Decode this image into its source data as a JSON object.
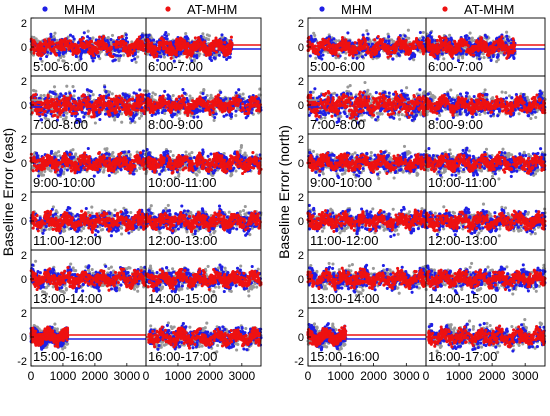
{
  "legend": {
    "series": [
      {
        "name": "MHM",
        "color": "#1f1fe6"
      },
      {
        "name": "AT-MHM",
        "color": "#ee1111"
      }
    ],
    "reference_color": "#999999"
  },
  "chart_data": [
    {
      "type": "scatter",
      "panel": "east",
      "ylabel": "Baseline Error (east)",
      "xlim": [
        0,
        3600
      ],
      "ylim": [
        -2,
        2
      ],
      "xticks": [
        0,
        1000,
        2000,
        3000
      ],
      "yticks": [
        -2,
        0,
        2
      ],
      "grid": false,
      "legend_position": "top",
      "series": [
        "MHM",
        "AT-MHM"
      ],
      "rows": [
        {
          "left": "5:00-6:00",
          "right": "6:00-7:00"
        },
        {
          "left": "7:00-8:00",
          "right": "8:00-9:00"
        },
        {
          "left": "9:00-10:00",
          "right": "10:00-11:00"
        },
        {
          "left": "11:00-12:00",
          "right": "12:00-13:00"
        },
        {
          "left": "13:00-14:00",
          "right": "14:00-15:00"
        },
        {
          "left": "15:00-16:00",
          "right": "16:00-17:00"
        }
      ]
    },
    {
      "type": "scatter",
      "panel": "north",
      "ylabel": "Baseline Error (north)",
      "xlim": [
        0,
        3600
      ],
      "ylim": [
        -2,
        2
      ],
      "xticks": [
        0,
        1000,
        2000,
        3000
      ],
      "yticks": [
        -2,
        0,
        2
      ],
      "grid": false,
      "legend_position": "top",
      "series": [
        "MHM",
        "AT-MHM"
      ],
      "rows": [
        {
          "left": "5:00-6:00",
          "right": "6:00-7:00"
        },
        {
          "left": "7:00-8:00",
          "right": "8:00-9:00"
        },
        {
          "left": "9:00-10:00",
          "right": "10:00-11:00"
        },
        {
          "left": "11:00-12:00",
          "right": "12:00-13:00"
        },
        {
          "left": "13:00-14:00",
          "right": "14:00-15:00"
        },
        {
          "left": "15:00-16:00",
          "right": "16:00-17:00"
        }
      ]
    }
  ]
}
